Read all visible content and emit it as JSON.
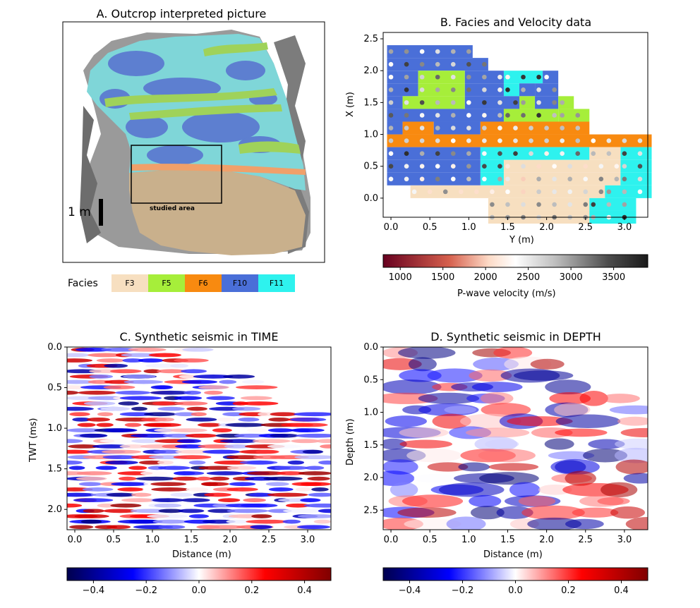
{
  "panel_a": {
    "title": "A. Outcrop interpreted picture",
    "scale_label": "1 m",
    "studied_area_label": "studied area",
    "legend_title": "Facies",
    "legend": [
      {
        "label": "F3",
        "color": "#f7dfc0"
      },
      {
        "label": "F5",
        "color": "#a6ee3a"
      },
      {
        "label": "F6",
        "color": "#f88a10"
      },
      {
        "label": "F10",
        "color": "#4a6fd8"
      },
      {
        "label": "F11",
        "color": "#2ef2ee"
      }
    ]
  },
  "chart_data": [
    {
      "type": "heatmap",
      "title": "B. Facies and Velocity data",
      "xlabel": "Y (m)",
      "ylabel": "X (m)",
      "xlim": [
        -0.1,
        3.3
      ],
      "ylim": [
        -0.3,
        2.6
      ],
      "xticks": [
        "0.0",
        "0.5",
        "1.0",
        "1.5",
        "2.0",
        "2.5",
        "3.0"
      ],
      "yticks": [
        "0.0",
        "0.5",
        "1.0",
        "1.5",
        "2.0",
        "2.5"
      ],
      "facies_colors": {
        "F3": "#f7dfc0",
        "F5": "#a6ee3a",
        "F6": "#f88a10",
        "F10": "#4a6fd8",
        "F11": "#2ef2ee"
      },
      "facies_rows": [
        {
          "x": 2.3,
          "cells": [
            [
              0.0,
              1.0,
              "F10"
            ]
          ]
        },
        {
          "x": 2.1,
          "cells": [
            [
              0.0,
              1.2,
              "F10"
            ]
          ]
        },
        {
          "x": 1.9,
          "cells": [
            [
              0.0,
              0.3,
              "F10"
            ],
            [
              0.4,
              0.9,
              "F5"
            ],
            [
              1.0,
              1.4,
              "F10"
            ],
            [
              1.5,
              1.9,
              "F11"
            ],
            [
              2.0,
              2.1,
              "F10"
            ]
          ]
        },
        {
          "x": 1.7,
          "cells": [
            [
              0.0,
              0.3,
              "F10"
            ],
            [
              0.4,
              0.9,
              "F5"
            ],
            [
              1.0,
              1.4,
              "F10"
            ],
            [
              1.5,
              1.6,
              "F11"
            ],
            [
              1.7,
              1.8,
              "F10"
            ],
            [
              1.9,
              2.1,
              "F10"
            ]
          ]
        },
        {
          "x": 1.5,
          "cells": [
            [
              0.0,
              0.1,
              "F10"
            ],
            [
              0.2,
              0.9,
              "F5"
            ],
            [
              1.0,
              1.6,
              "F10"
            ],
            [
              1.7,
              1.8,
              "F5"
            ],
            [
              1.9,
              2.1,
              "F10"
            ],
            [
              2.2,
              2.3,
              "F5"
            ]
          ]
        },
        {
          "x": 1.3,
          "cells": [
            [
              0.0,
              1.4,
              "F10"
            ],
            [
              1.5,
              2.1,
              "F5"
            ],
            [
              2.2,
              2.5,
              "F5"
            ]
          ]
        },
        {
          "x": 1.1,
          "cells": [
            [
              0.0,
              0.1,
              "F10"
            ],
            [
              0.2,
              0.5,
              "F6"
            ],
            [
              0.6,
              1.1,
              "F10"
            ],
            [
              1.2,
              2.5,
              "F6"
            ]
          ]
        },
        {
          "x": 0.9,
          "cells": [
            [
              0.0,
              3.3,
              "F6"
            ]
          ]
        },
        {
          "x": 0.7,
          "cells": [
            [
              0.0,
              1.1,
              "F10"
            ],
            [
              1.2,
              2.5,
              "F11"
            ],
            [
              2.6,
              2.9,
              "F3"
            ],
            [
              3.0,
              3.3,
              "F11"
            ]
          ]
        },
        {
          "x": 0.5,
          "cells": [
            [
              0.0,
              1.1,
              "F10"
            ],
            [
              1.2,
              1.4,
              "F11"
            ],
            [
              1.5,
              2.9,
              "F3"
            ],
            [
              3.0,
              3.3,
              "F11"
            ]
          ]
        },
        {
          "x": 0.3,
          "cells": [
            [
              0.0,
              1.1,
              "F10"
            ],
            [
              1.2,
              1.4,
              "F11"
            ],
            [
              1.5,
              2.9,
              "F3"
            ],
            [
              3.0,
              3.3,
              "F11"
            ]
          ]
        },
        {
          "x": 0.1,
          "cells": [
            [
              0.3,
              2.7,
              "F3"
            ],
            [
              2.8,
              3.3,
              "F11"
            ]
          ]
        },
        {
          "x": -0.1,
          "cells": [
            [
              1.3,
              2.5,
              "F3"
            ],
            [
              2.6,
              3.1,
              "F11"
            ]
          ]
        },
        {
          "x": -0.3,
          "cells": [
            [
              1.3,
              2.5,
              "F3"
            ],
            [
              2.6,
              3.1,
              "F11"
            ]
          ]
        }
      ],
      "colorbar": {
        "label": "P-wave velocity (m/s)",
        "range": [
          800,
          3900
        ],
        "ticks": [
          "1000",
          "1500",
          "2000",
          "2500",
          "3000",
          "3500"
        ],
        "colormap": "RdGy"
      }
    },
    {
      "type": "heatmap",
      "title": "C. Synthetic seismic in TIME",
      "xlabel": "Distance (m)",
      "ylabel": "TWT (ms)",
      "xlim": [
        -0.1,
        3.3
      ],
      "ylim": [
        2.25,
        0.0
      ],
      "xticks": [
        "0.0",
        "0.5",
        "1.0",
        "1.5",
        "2.0",
        "2.5",
        "3.0"
      ],
      "yticks": [
        "0.0",
        "0.5",
        "1.0",
        "1.5",
        "2.0"
      ],
      "colorbar": {
        "range": [
          -0.5,
          0.5
        ],
        "ticks": [
          "−0.4",
          "−0.2",
          "0.0",
          "0.2",
          "0.4"
        ],
        "colormap": "seismic"
      }
    },
    {
      "type": "heatmap",
      "title": "D. Synthetic seismic in DEPTH",
      "xlabel": "Distance (m)",
      "ylabel": "Depth (m)",
      "xlim": [
        -0.1,
        3.3
      ],
      "ylim": [
        2.8,
        0.0
      ],
      "xticks": [
        "0.0",
        "0.5",
        "1.0",
        "1.5",
        "2.0",
        "2.5",
        "3.0"
      ],
      "yticks": [
        "0.0",
        "0.5",
        "1.0",
        "1.5",
        "2.0",
        "2.5"
      ],
      "colorbar": {
        "range": [
          -0.5,
          0.5
        ],
        "ticks": [
          "−0.4",
          "−0.2",
          "0.0",
          "0.2",
          "0.4"
        ],
        "colormap": "seismic"
      }
    }
  ]
}
